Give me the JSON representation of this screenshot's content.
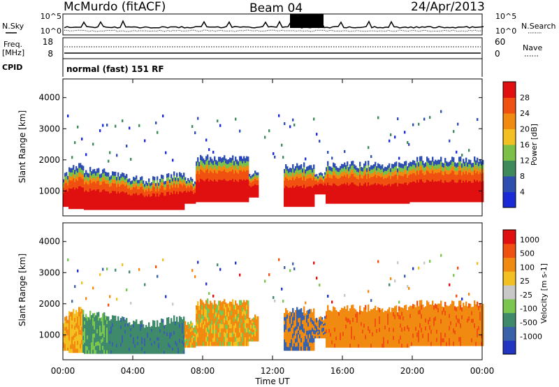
{
  "header": {
    "title": "McMurdo (fitACF)",
    "beam": "Beam 04",
    "date": "24/Apr/2013"
  },
  "top_panel": {
    "left_label": "N.Sky",
    "right_label": "N.Search",
    "left_ticks": [
      "10^5",
      "10^0"
    ],
    "right_ticks": [
      "10^5",
      "10^0"
    ]
  },
  "freq_panel": {
    "left_label_1": "Freq.",
    "left_label_2": "[MHz]",
    "right_label": "Nave",
    "left_ticks": [
      "18",
      "8"
    ],
    "right_ticks": [
      "60",
      "0"
    ]
  },
  "cpid": {
    "label": "CPID",
    "text": "normal (fast) 151 RF"
  },
  "chart_data": [
    {
      "type": "heatmap",
      "name": "power",
      "ylabel": "Slant Range [km]",
      "ylim": [
        200,
        4600
      ],
      "xlim": [
        0,
        24
      ],
      "yticks": [
        1000,
        2000,
        3000,
        4000
      ],
      "colorbar": {
        "label": "Power [dB]",
        "ticks": [
          "4",
          "8",
          "12",
          "16",
          "20",
          "24",
          "28"
        ],
        "colors": [
          "#1a2ad6",
          "#2e4fb0",
          "#3f8a5a",
          "#7cc04a",
          "#f2c020",
          "#f08a10",
          "#f05010",
          "#e01010"
        ]
      }
    },
    {
      "type": "heatmap",
      "name": "velocity",
      "ylabel": "Slant Range [km]",
      "xlabel": "Time UT",
      "ylim": [
        200,
        4600
      ],
      "xlim": [
        0,
        24
      ],
      "yticks": [
        1000,
        2000,
        3000,
        4000
      ],
      "xtick_labels": [
        "00:00",
        "04:00",
        "08:00",
        "12:00",
        "16:00",
        "20:00",
        "00:00"
      ],
      "colorbar": {
        "label": "Velocity [m s-1]",
        "ticks": [
          "1000",
          "500",
          "100",
          "25",
          "-25",
          "-100",
          "-500",
          "-1000"
        ],
        "colors": [
          "#2235c0",
          "#3a62a8",
          "#3e8a6a",
          "#7ac650",
          "#c8c8c8",
          "#f2c020",
          "#f08a10",
          "#f05010",
          "#e01010"
        ]
      }
    }
  ],
  "colors": {
    "background_echo": "#e01010",
    "orange": "#f08a10",
    "green_dark": "#3e8a6a"
  }
}
